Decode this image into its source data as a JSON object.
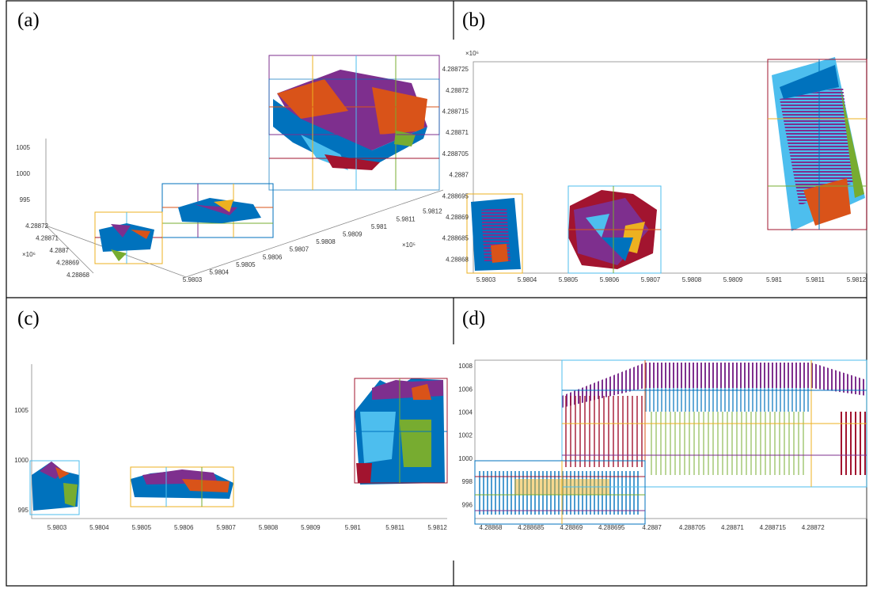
{
  "panels": [
    {
      "label": "(a)",
      "x_ticks": [
        "5.9803",
        "5.9804",
        "5.9805",
        "5.9806",
        "5.9807",
        "5.9808",
        "5.9809",
        "5.981",
        "5.9811",
        "5.9812"
      ],
      "x_exponent": "×10⁵",
      "y_ticks": [
        "4.28868",
        "4.28869",
        "4.2887",
        "4.28871",
        "4.28872"
      ],
      "y_exponent": "×10⁶",
      "z_ticks": [
        "1005",
        "1000",
        "995"
      ]
    },
    {
      "label": "(b)",
      "y_exponent": "×10⁶",
      "y_ticks": [
        "4.288725",
        "4.28872",
        "4.288715",
        "4.28871",
        "4.288705",
        "4.2887",
        "4.288695",
        "4.28869",
        "4.288685",
        "4.28868"
      ],
      "x_ticks": [
        "5.9803",
        "5.9804",
        "5.9805",
        "5.9806",
        "5.9807",
        "5.9808",
        "5.9809",
        "5.981",
        "5.9811",
        "5.9812"
      ]
    },
    {
      "label": "(c)",
      "y_ticks": [
        "1005",
        "1000",
        "995"
      ],
      "x_ticks": [
        "5.9803",
        "5.9804",
        "5.9805",
        "5.9806",
        "5.9807",
        "5.9808",
        "5.9809",
        "5.981",
        "5.9811",
        "5.9812"
      ]
    },
    {
      "label": "(d)",
      "y_ticks": [
        "1008",
        "1006",
        "1004",
        "1002",
        "1000",
        "998",
        "996"
      ],
      "x_ticks": [
        "4.28868",
        "4.288685",
        "4.28869",
        "4.288695",
        "4.2887",
        "4.288705",
        "4.28871",
        "4.288715",
        "4.28872"
      ]
    }
  ]
}
